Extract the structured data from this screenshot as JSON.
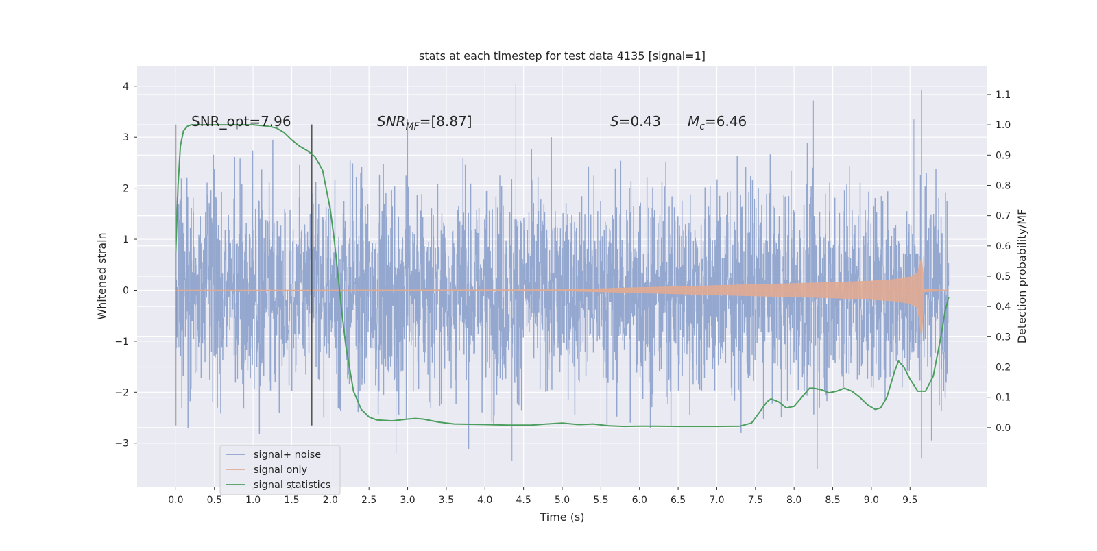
{
  "chart_data": {
    "type": "line",
    "title": "stats at each timestep for test data 4135 [signal=1]",
    "xlabel": "Time (s)",
    "ylabel_left": "Whitened strain",
    "ylabel_right": "Detection probability/MF",
    "xlim": [
      -0.5,
      10.5
    ],
    "ylim_left": [
      -3.85,
      4.4
    ],
    "ylim_right": [
      -0.195,
      1.195
    ],
    "x_ticks": [
      "0.0",
      "0.5",
      "1.0",
      "1.5",
      "2.0",
      "2.5",
      "3.0",
      "3.5",
      "4.0",
      "4.5",
      "5.0",
      "5.5",
      "6.0",
      "6.5",
      "7.0",
      "7.5",
      "8.0",
      "8.5",
      "9.0",
      "9.5"
    ],
    "y_ticks_left": [
      "−3",
      "−2",
      "−1",
      "0",
      "1",
      "2",
      "3",
      "4"
    ],
    "y_ticks_right": [
      "0.0",
      "0.1",
      "0.2",
      "0.3",
      "0.4",
      "0.5",
      "0.6",
      "0.7",
      "0.8",
      "0.9",
      "1.0",
      "1.1"
    ],
    "grid": true,
    "legend": "lower-left",
    "annotations": {
      "snr_opt": "SNR_opt=7.96",
      "snr_mf_main": "SNR",
      "snr_mf_sub": "MF",
      "snr_mf_val": "=[8.87]",
      "s_main": "S",
      "s_val": "=0.43",
      "mc_main": "M",
      "mc_sub": "c",
      "mc_val": "=6.46"
    },
    "vertical_lines": [
      0.0,
      1.76
    ],
    "series": [
      {
        "name": "signal+ noise",
        "axis": "left",
        "color": "#8fa3cc",
        "t_range": [
          0.0,
          10.0
        ],
        "band_std": 1.0,
        "spike_extremes": [
          {
            "x": 4.4,
            "y": 4.05
          },
          {
            "x": 9.65,
            "y": 3.93
          },
          {
            "x": 8.25,
            "y": 3.72
          },
          {
            "x": 3.0,
            "y": 3.35
          },
          {
            "x": 9.55,
            "y": 3.35
          },
          {
            "x": 8.3,
            "y": -3.5
          },
          {
            "x": 4.35,
            "y": -3.35
          },
          {
            "x": 9.65,
            "y": -3.3
          },
          {
            "x": 2.85,
            "y": -3.2
          }
        ]
      },
      {
        "name": "signal only",
        "axis": "left",
        "color": "#e0ab93",
        "envelope_x": [
          0.0,
          5.0,
          5.5,
          6.0,
          6.5,
          7.0,
          7.5,
          8.0,
          8.5,
          9.0,
          9.3,
          9.5,
          9.6,
          9.65,
          9.68,
          10.0
        ],
        "envelope_y": [
          0.0,
          0.01,
          0.03,
          0.05,
          0.07,
          0.09,
          0.11,
          0.13,
          0.15,
          0.18,
          0.21,
          0.26,
          0.34,
          0.65,
          0.02,
          0.0
        ]
      },
      {
        "name": "signal statistics",
        "axis": "right",
        "color": "#4c9e5e",
        "x": [
          0.0,
          0.03,
          0.06,
          0.1,
          0.15,
          0.2,
          0.3,
          0.5,
          0.8,
          1.0,
          1.2,
          1.3,
          1.4,
          1.5,
          1.6,
          1.7,
          1.8,
          1.9,
          2.0,
          2.05,
          2.1,
          2.15,
          2.2,
          2.3,
          2.4,
          2.5,
          2.6,
          2.8,
          3.0,
          3.1,
          3.2,
          3.4,
          3.6,
          4.0,
          4.3,
          4.6,
          4.8,
          5.0,
          5.2,
          5.25,
          5.4,
          5.6,
          5.8,
          6.0,
          6.2,
          6.5,
          7.0,
          7.3,
          7.45,
          7.55,
          7.65,
          7.7,
          7.8,
          7.9,
          8.0,
          8.1,
          8.2,
          8.25,
          8.35,
          8.45,
          8.55,
          8.65,
          8.75,
          8.85,
          8.95,
          9.05,
          9.12,
          9.2,
          9.3,
          9.35,
          9.42,
          9.5,
          9.6,
          9.7,
          9.8,
          9.9,
          9.95,
          10.0
        ],
        "y": [
          0.58,
          0.8,
          0.93,
          0.98,
          0.995,
          1.0,
          1.0,
          1.0,
          1.0,
          1.0,
          0.995,
          0.99,
          0.975,
          0.95,
          0.93,
          0.915,
          0.895,
          0.85,
          0.72,
          0.62,
          0.5,
          0.38,
          0.27,
          0.12,
          0.06,
          0.035,
          0.025,
          0.022,
          0.028,
          0.03,
          0.028,
          0.018,
          0.012,
          0.01,
          0.008,
          0.008,
          0.012,
          0.015,
          0.01,
          0.01,
          0.012,
          0.006,
          0.004,
          0.005,
          0.005,
          0.004,
          0.004,
          0.005,
          0.015,
          0.05,
          0.085,
          0.095,
          0.085,
          0.065,
          0.07,
          0.1,
          0.13,
          0.13,
          0.125,
          0.115,
          0.12,
          0.13,
          0.12,
          0.1,
          0.075,
          0.06,
          0.065,
          0.1,
          0.185,
          0.22,
          0.2,
          0.16,
          0.12,
          0.12,
          0.17,
          0.3,
          0.38,
          0.43
        ]
      }
    ]
  }
}
